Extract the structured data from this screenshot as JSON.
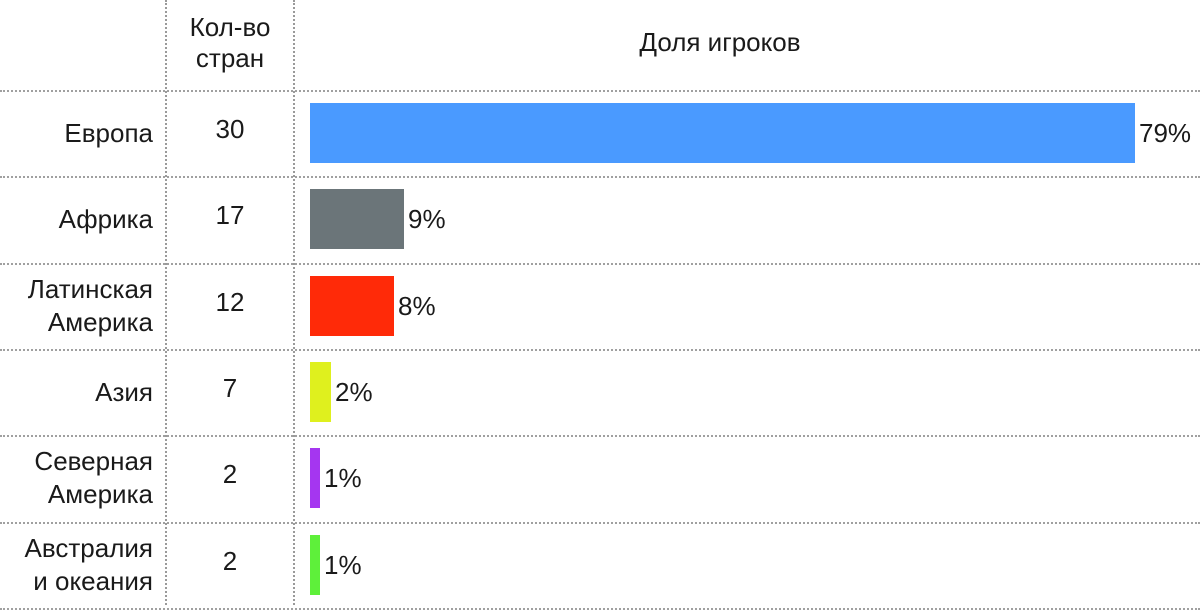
{
  "header": {
    "count_col": "Кол-во\nстран",
    "share_col": "Доля игроков"
  },
  "chart_data": {
    "type": "bar",
    "title": "",
    "columns": [
      "Кол-во стран",
      "Доля игроков"
    ],
    "categories": [
      "Европа",
      "Африка",
      "Латинская Америка",
      "Азия",
      "Северная Америка",
      "Австралия и океания"
    ],
    "category_labels": [
      "Европа",
      "Африка",
      "Латинская\nАмерика",
      "Азия",
      "Северная\nАмерика",
      "Австралия\nи океания"
    ],
    "country_counts": [
      "30",
      "17",
      "12",
      "7",
      "2",
      "2"
    ],
    "values": [
      79,
      9,
      8,
      2,
      1,
      1
    ],
    "value_labels": [
      "79%",
      "9%",
      "8%",
      "2%",
      "1%",
      "1%"
    ],
    "colors": [
      "#4a9aff",
      "#6b7579",
      "#ff2a08",
      "#dff01e",
      "#a536f0",
      "#5ef03a"
    ],
    "value_unit": "%",
    "grid": true,
    "legend": "none"
  }
}
